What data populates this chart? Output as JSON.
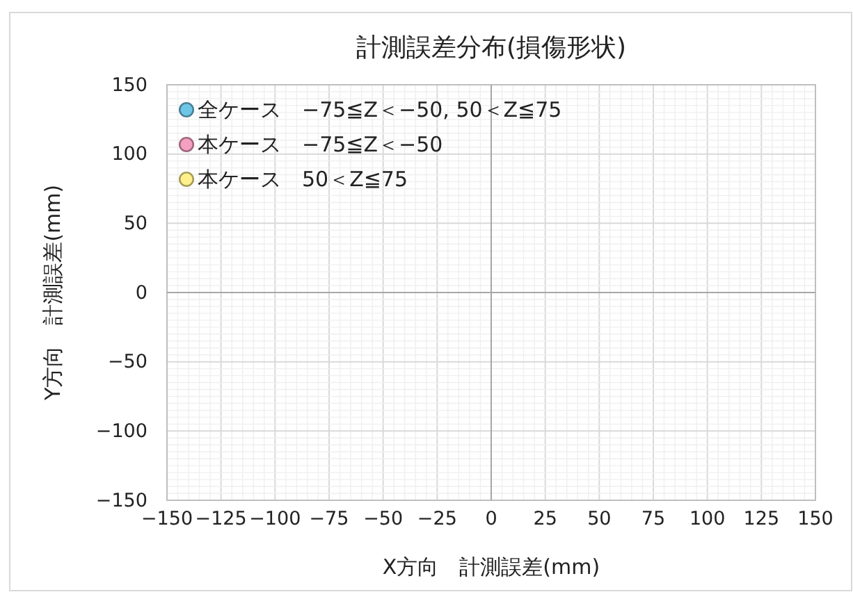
{
  "chart_data": {
    "type": "scatter",
    "title": "計測誤差分布(損傷形状)",
    "xlabel": "X方向　計測誤差(mm)",
    "ylabel": "Y方向　計測誤差(mm)",
    "xlim": [
      -150,
      150
    ],
    "xticks": [
      -150,
      -125,
      -100,
      -75,
      -50,
      -25,
      0,
      25,
      50,
      75,
      100,
      125,
      150
    ],
    "ylim": [
      -150,
      150
    ],
    "yticks": [
      -150,
      -100,
      -50,
      0,
      50,
      100,
      150
    ],
    "grid": true,
    "legend": "top left",
    "marker": "circle",
    "series": [
      {
        "name": "全ケース　−75≦Z＜−50, 50＜Z≦75",
        "color": "#6ec6e6",
        "x": [
          null
        ],
        "values": [
          null
        ]
      },
      {
        "name": "本ケース　−75≦Z＜−50",
        "color": "#f4a0c0",
        "x": [
          null
        ],
        "values": [
          null
        ]
      },
      {
        "name": "本ケース　50＜Z≦75",
        "color": "#fff08c",
        "x": [
          null
        ],
        "values": [
          null
        ]
      }
    ]
  }
}
